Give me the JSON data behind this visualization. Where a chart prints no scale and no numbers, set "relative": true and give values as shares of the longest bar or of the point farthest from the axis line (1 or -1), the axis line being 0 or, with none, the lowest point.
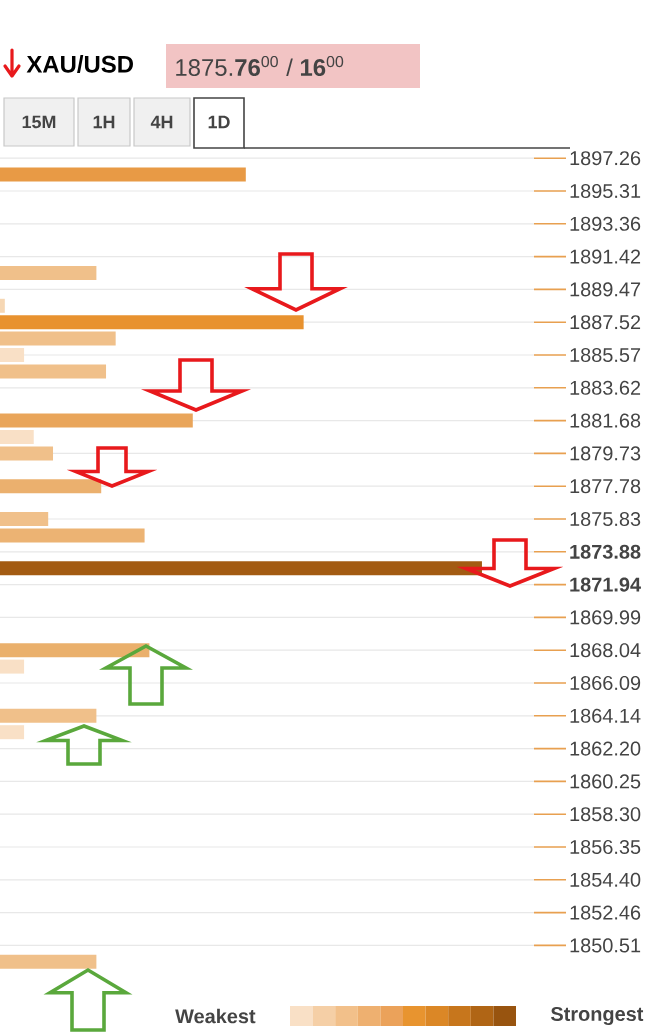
{
  "chart_data": {
    "type": "bar",
    "orientation": "horizontal",
    "relative": true,
    "title": "XAU/USD",
    "subtitle": "1875.**76**$^{00}$ / **16**$^{00}$",
    "categories": [
      "1897.26",
      null,
      "1895.31",
      null,
      "1893.36",
      null,
      "1891.42",
      null,
      "1889.47",
      null,
      "1887.52",
      null,
      "1885.57",
      null,
      "1883.62",
      null,
      "1881.68",
      null,
      "1879.73",
      null,
      "1877.78",
      null,
      "1875.83",
      null,
      "**1873.88**",
      null,
      "**1871.94**",
      null,
      "1869.99",
      null,
      "1868.04",
      null,
      "1866.09",
      null,
      "1864.14",
      null,
      "1862.20",
      null,
      "1860.25",
      null,
      "1858.30",
      null,
      "1856.35",
      null,
      "1854.40",
      null,
      "1852.46",
      null,
      "1850.51",
      null
    ],
    "values": [
      null,
      0.51,
      null,
      null,
      null,
      null,
      null,
      0.2,
      null,
      0.01,
      0.63,
      0.24,
      0.05,
      0.22,
      null,
      null,
      0.4,
      0.07,
      0.11,
      null,
      0.21,
      null,
      0.1,
      0.3,
      null,
      1,
      null,
      null,
      null,
      null,
      0.31,
      0.05,
      null,
      null,
      0.2,
      0.05,
      null,
      null,
      null,
      null,
      null,
      null,
      null,
      null,
      null,
      null,
      null,
      null,
      null,
      0.2
    ],
    "colors": [
      null,
      "#e89a45",
      null,
      null,
      null,
      null,
      null,
      "#f0c08a",
      null,
      "#f6d7b4",
      "#e8922f",
      "#f0c08a",
      "#f9e0c6",
      "#f0c08a",
      null,
      null,
      "#e9a55a",
      "#f9e0c6",
      "#f0c08a",
      null,
      "#ebb06e",
      null,
      "#f0c08a",
      "#ecb373",
      null,
      "#a35b12",
      null,
      null,
      null,
      null,
      "#eab06c",
      "#f9e0c6",
      null,
      null,
      "#f0c08a",
      "#f9e0c6",
      null,
      null,
      null,
      null,
      null,
      null,
      null,
      null,
      null,
      null,
      null,
      null,
      null,
      "#f0c08a"
    ],
    "annotations": [
      "15M",
      "1H",
      "4H",
      "1D",
      "Weakest",
      "Strongest"
    ],
    "grid": "y"
  }
}
